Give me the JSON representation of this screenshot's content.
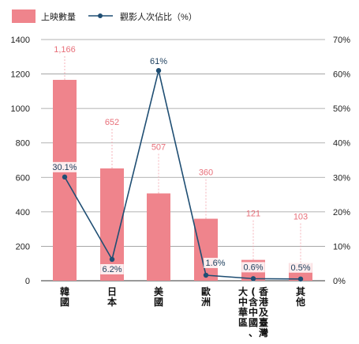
{
  "chart_data": {
    "type": "bar+line",
    "categories": [
      "韓國",
      "日本",
      "美國",
      "歐洲",
      "大中華區",
      "其他"
    ],
    "category_lines": [
      [
        "韓國"
      ],
      [
        "日本"
      ],
      [
        "美國"
      ],
      [
        "歐洲"
      ],
      [
        "香港及臺灣",
        "(含中國、",
        "大中華區"
      ],
      [
        "其他"
      ]
    ],
    "series": [
      {
        "name": "上映數量",
        "type": "bar",
        "axis": "left",
        "values": [
          1166,
          652,
          507,
          360,
          121,
          103
        ],
        "labels": [
          "1,166",
          "652",
          "507",
          "360",
          "121",
          "103"
        ],
        "color": "#ef848c"
      },
      {
        "name": "觀影人次佔比（%）",
        "type": "line",
        "axis": "right",
        "values": [
          30.1,
          6.2,
          61,
          1.6,
          0.6,
          0.5
        ],
        "labels": [
          "30.1%",
          "6.2%",
          "61%",
          "1.6%",
          "0.6%",
          "0.5%"
        ],
        "color": "#1f4e73"
      }
    ],
    "y_left": {
      "min": 0,
      "max": 1400,
      "ticks": [
        0,
        200,
        400,
        600,
        800,
        1000,
        1200,
        1400
      ]
    },
    "y_right": {
      "min": 0,
      "max": 70,
      "ticks": [
        "0%",
        "10%",
        "20%",
        "30%",
        "40%",
        "50%",
        "60%",
        "70%"
      ]
    },
    "legend_position": "top-left",
    "grid": "horizontal",
    "colors": {
      "bar": "#ef848c",
      "bar_label": "#e8707a",
      "line": "#1f4e73",
      "grid": "#9a9a9a",
      "leader": "#f2a0a8"
    }
  }
}
